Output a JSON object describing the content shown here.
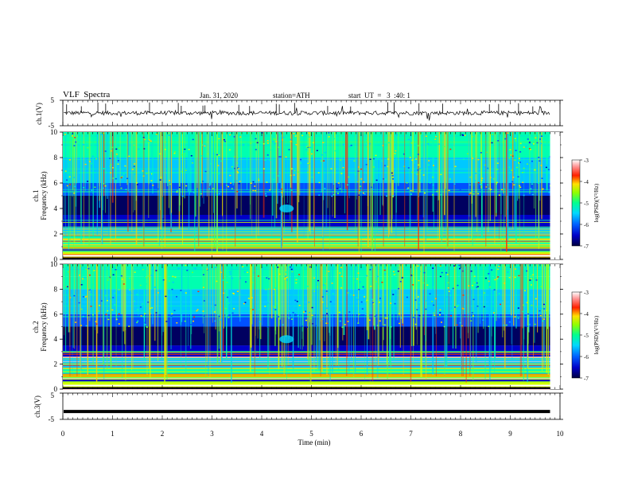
{
  "header": {
    "title": "VLF  Spectra",
    "date": "Jan. 31, 2020",
    "station": "station=ATH",
    "start": "start  UT  =   3  :40: 1"
  },
  "colors": {
    "waveform": "#000000",
    "background": "#ffffff",
    "colormap": [
      "#000060",
      "#0000c8",
      "#0050ff",
      "#00c8ff",
      "#00ffb0",
      "#60ff40",
      "#d0ff00",
      "#ffd000",
      "#ff3000",
      "#ffc8c8",
      "#ffffff"
    ]
  },
  "chart_data": [
    {
      "type": "line",
      "panel": "ch1-waveform",
      "ylabel": "ch.1(V)",
      "ylim": [
        -5,
        5
      ],
      "yticks": [
        "5",
        "-5"
      ],
      "xlim": [
        0,
        10
      ],
      "series": [
        {
          "values_summary": "noisy waveform centred near 0 V, amplitude about ±1 V, spikes to about ±3 V"
        }
      ]
    },
    {
      "type": "heatmap",
      "panel": "ch1-spectrogram",
      "ylabel": "ch.1\nFrequency (kHz)",
      "ylim": [
        0,
        10
      ],
      "yticks": [
        "0",
        "2",
        "4",
        "6",
        "8",
        "10"
      ],
      "xlim": [
        0,
        9.8
      ],
      "colorbar": {
        "label": "log(PSD)(V²/Hz)",
        "ticks": [
          "-3",
          "-4",
          "-5",
          "-6",
          "-7"
        ],
        "range": [
          -7,
          -3
        ]
      }
    },
    {
      "type": "heatmap",
      "panel": "ch2-spectrogram",
      "ylabel": "ch.2\nFrequency (kHz)",
      "ylim": [
        0,
        10
      ],
      "yticks": [
        "0",
        "2",
        "4",
        "6",
        "8",
        "10"
      ],
      "xlim": [
        0,
        9.8
      ],
      "colorbar": {
        "label": "log(PSD)(V²/Hz)",
        "ticks": [
          "-3",
          "-4",
          "-5",
          "-6",
          "-7"
        ],
        "range": [
          -7,
          -3
        ]
      }
    },
    {
      "type": "line",
      "panel": "ch3-waveform",
      "ylabel": "ch.3(V)",
      "ylim": [
        -5,
        5
      ],
      "yticks": [
        "5",
        "-5"
      ],
      "xlim": [
        0,
        10
      ],
      "series": [
        {
          "values_summary": "flat line at about -2 V"
        }
      ]
    }
  ],
  "xaxis": {
    "label": "Time  (min)",
    "range": [
      0,
      10
    ],
    "ticks": [
      "0",
      "1",
      "2",
      "3",
      "4",
      "5",
      "6",
      "7",
      "8",
      "9",
      "10"
    ]
  }
}
